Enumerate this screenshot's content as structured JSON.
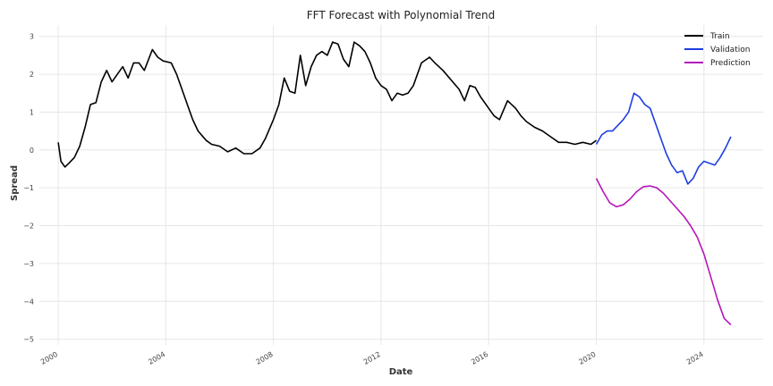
{
  "chart_data": {
    "type": "line",
    "title": "FFT Forecast with Polynomial Trend",
    "xlabel": "Date",
    "ylabel": "Spread",
    "xlim": [
      1999.3,
      2026.2
    ],
    "ylim": [
      -5.15,
      3.3
    ],
    "grid": true,
    "legend": "top-right",
    "x_ticks": [
      2000,
      2004,
      2008,
      2012,
      2016,
      2020,
      2024
    ],
    "y_ticks": [
      3,
      2,
      1,
      0,
      -1,
      -2,
      -3,
      -4,
      -5
    ],
    "y_tick_labels": [
      "3",
      "2",
      "1",
      "0",
      "−1",
      "−2",
      "−3",
      "−4",
      "−5"
    ],
    "series": [
      {
        "name": "Train",
        "color": "#000000",
        "x": [
          2000.0,
          2000.1,
          2000.25,
          2000.4,
          2000.6,
          2000.8,
          2001.0,
          2001.2,
          2001.4,
          2001.6,
          2001.8,
          2002.0,
          2002.2,
          2002.4,
          2002.6,
          2002.8,
          2003.0,
          2003.2,
          2003.5,
          2003.7,
          2003.9,
          2004.2,
          2004.4,
          2004.6,
          2004.8,
          2005.0,
          2005.2,
          2005.5,
          2005.7,
          2006.0,
          2006.3,
          2006.6,
          2006.9,
          2007.2,
          2007.5,
          2007.7,
          2008.0,
          2008.2,
          2008.4,
          2008.6,
          2008.8,
          2009.0,
          2009.2,
          2009.4,
          2009.6,
          2009.8,
          2010.0,
          2010.2,
          2010.4,
          2010.6,
          2010.8,
          2011.0,
          2011.2,
          2011.4,
          2011.6,
          2011.8,
          2012.0,
          2012.2,
          2012.4,
          2012.6,
          2012.8,
          2013.0,
          2013.2,
          2013.5,
          2013.8,
          2014.0,
          2014.3,
          2014.6,
          2014.9,
          2015.1,
          2015.3,
          2015.5,
          2015.7,
          2016.0,
          2016.2,
          2016.4,
          2016.7,
          2017.0,
          2017.2,
          2017.4,
          2017.7,
          2018.0,
          2018.3,
          2018.6,
          2018.9,
          2019.2,
          2019.5,
          2019.8,
          2020.0
        ],
        "y": [
          0.2,
          -0.3,
          -0.45,
          -0.35,
          -0.2,
          0.1,
          0.6,
          1.2,
          1.25,
          1.8,
          2.1,
          1.8,
          2.0,
          2.2,
          1.9,
          2.3,
          2.3,
          2.1,
          2.65,
          2.45,
          2.35,
          2.3,
          2.0,
          1.6,
          1.2,
          0.8,
          0.5,
          0.25,
          0.15,
          0.1,
          -0.05,
          0.05,
          -0.1,
          -0.1,
          0.05,
          0.3,
          0.8,
          1.2,
          1.9,
          1.55,
          1.5,
          2.5,
          1.7,
          2.2,
          2.5,
          2.6,
          2.5,
          2.85,
          2.8,
          2.4,
          2.2,
          2.85,
          2.75,
          2.6,
          2.3,
          1.9,
          1.7,
          1.6,
          1.3,
          1.5,
          1.45,
          1.5,
          1.7,
          2.3,
          2.45,
          2.3,
          2.1,
          1.85,
          1.6,
          1.3,
          1.7,
          1.65,
          1.4,
          1.1,
          0.9,
          0.8,
          1.3,
          1.1,
          0.9,
          0.75,
          0.6,
          0.5,
          0.35,
          0.2,
          0.2,
          0.15,
          0.2,
          0.15,
          0.25
        ]
      },
      {
        "name": "Validation",
        "color": "#1f3de0",
        "x": [
          2020.0,
          2020.2,
          2020.4,
          2020.6,
          2020.8,
          2021.0,
          2021.2,
          2021.4,
          2021.6,
          2021.8,
          2022.0,
          2022.2,
          2022.4,
          2022.6,
          2022.8,
          2023.0,
          2023.2,
          2023.4,
          2023.6,
          2023.8,
          2024.0,
          2024.2,
          2024.4,
          2024.6,
          2024.8,
          2025.0
        ],
        "y": [
          0.15,
          0.4,
          0.5,
          0.5,
          0.65,
          0.8,
          1.0,
          1.5,
          1.4,
          1.2,
          1.1,
          0.7,
          0.3,
          -0.1,
          -0.4,
          -0.6,
          -0.55,
          -0.9,
          -0.75,
          -0.45,
          -0.3,
          -0.35,
          -0.4,
          -0.2,
          0.05,
          0.35
        ]
      },
      {
        "name": "Prediction",
        "color": "#b517b8",
        "x": [
          2020.0,
          2020.25,
          2020.5,
          2020.75,
          2021.0,
          2021.25,
          2021.5,
          2021.75,
          2022.0,
          2022.25,
          2022.5,
          2022.75,
          2023.0,
          2023.25,
          2023.5,
          2023.75,
          2024.0,
          2024.25,
          2024.5,
          2024.75,
          2025.0
        ],
        "y": [
          -0.75,
          -1.1,
          -1.4,
          -1.5,
          -1.45,
          -1.3,
          -1.1,
          -0.97,
          -0.95,
          -1.0,
          -1.15,
          -1.35,
          -1.55,
          -1.75,
          -2.0,
          -2.3,
          -2.75,
          -3.35,
          -3.95,
          -4.45,
          -4.62
        ]
      }
    ]
  }
}
